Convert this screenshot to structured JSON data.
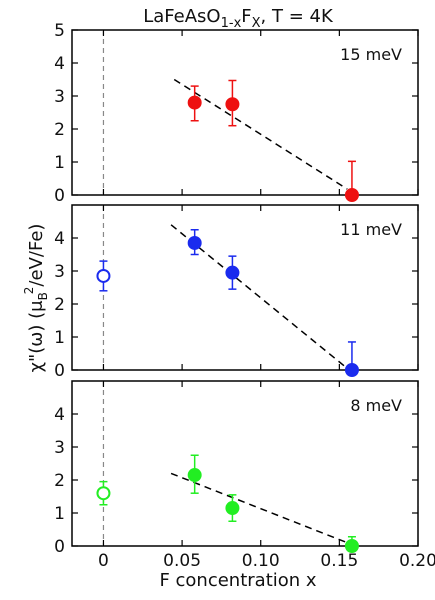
{
  "chart_data": {
    "type": "scatter",
    "title_main": "LaFeAsO",
    "title_sub": "1-x",
    "title_mid": "F",
    "title_sub2": "X",
    "title_tail": ", T = 4K",
    "xlabel": "F concentration x",
    "ylabel_main": "χ\"(ω)  (μ",
    "ylabel_sub": "B",
    "ylabel_sup": "2",
    "ylabel_tail": "/eV/Fe)",
    "xlim": [
      -0.02,
      0.2
    ],
    "x_ticks": [
      0,
      0.05,
      0.1,
      0.15,
      0.2
    ],
    "x_tick_labels": [
      "0",
      "0.05",
      "0.10",
      "0.15",
      "0.20"
    ],
    "grid": false,
    "panels": [
      {
        "label": "15 meV",
        "color": "#ee1111",
        "ylim": [
          0,
          5
        ],
        "y_ticks": [
          0,
          1,
          2,
          3,
          4,
          5
        ],
        "y_tick_labels": [
          "0",
          "1",
          "2",
          "3",
          "4",
          "5"
        ],
        "points": [
          {
            "x": 0.058,
            "y": 2.8,
            "err_lo": 0.55,
            "err_hi": 0.5,
            "filled": true
          },
          {
            "x": 0.082,
            "y": 2.75,
            "err_lo": 0.65,
            "err_hi": 0.72,
            "filled": true
          },
          {
            "x": 0.158,
            "y": 0.0,
            "err_lo": 0.0,
            "err_hi": 1.02,
            "filled": true
          }
        ],
        "fit_line": [
          [
            0.045,
            3.5
          ],
          [
            0.155,
            0.18
          ]
        ]
      },
      {
        "label": "11 meV",
        "color": "#1a2bee",
        "ylim": [
          0,
          5
        ],
        "y_ticks": [
          0,
          1,
          2,
          3,
          4
        ],
        "y_tick_labels": [
          "0",
          "1",
          "2",
          "3",
          "4"
        ],
        "points": [
          {
            "x": 0.0,
            "y": 2.85,
            "err_lo": 0.45,
            "err_hi": 0.45,
            "filled": false
          },
          {
            "x": 0.058,
            "y": 3.85,
            "err_lo": 0.35,
            "err_hi": 0.4,
            "filled": true
          },
          {
            "x": 0.082,
            "y": 2.95,
            "err_lo": 0.5,
            "err_hi": 0.5,
            "filled": true
          },
          {
            "x": 0.158,
            "y": 0.0,
            "err_lo": 0.0,
            "err_hi": 0.85,
            "filled": true
          }
        ],
        "fit_line": [
          [
            0.043,
            4.4
          ],
          [
            0.155,
            0.05
          ]
        ]
      },
      {
        "label": "8 meV",
        "color": "#22ee22",
        "ylim": [
          0,
          5
        ],
        "y_ticks": [
          0,
          1,
          2,
          3,
          4
        ],
        "y_tick_labels": [
          "0",
          "1",
          "2",
          "3",
          "4"
        ],
        "points": [
          {
            "x": 0.0,
            "y": 1.6,
            "err_lo": 0.35,
            "err_hi": 0.35,
            "filled": false
          },
          {
            "x": 0.058,
            "y": 2.15,
            "err_lo": 0.55,
            "err_hi": 0.6,
            "filled": true
          },
          {
            "x": 0.082,
            "y": 1.15,
            "err_lo": 0.4,
            "err_hi": 0.4,
            "filled": true
          },
          {
            "x": 0.158,
            "y": 0.0,
            "err_lo": 0.0,
            "err_hi": 0.28,
            "filled": true
          }
        ],
        "fit_line": [
          [
            0.043,
            2.2
          ],
          [
            0.155,
            0.1
          ]
        ]
      }
    ]
  }
}
